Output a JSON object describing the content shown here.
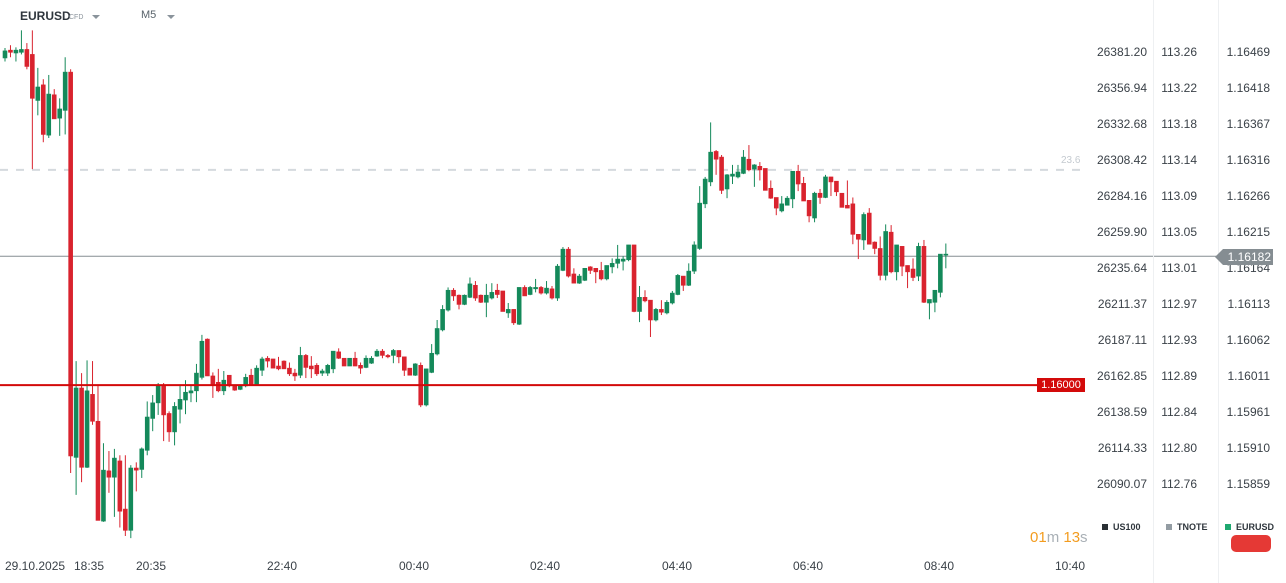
{
  "header": {
    "symbol": "EURUSD",
    "symbol_type": "CFD",
    "timeframe": "M5"
  },
  "colors": {
    "up": "#14895a",
    "down": "#d9232e",
    "level": "#d30a0a",
    "current": "#858d92",
    "fib": "#d5dade"
  },
  "axes": {
    "us100": [
      "26381.20",
      "26356.94",
      "26332.68",
      "26308.42",
      "26284.16",
      "26259.90",
      "26235.64",
      "26211.37",
      "26187.11",
      "26162.85",
      "26138.59",
      "26114.33",
      "26090.07"
    ],
    "tnote": [
      "113.26",
      "113.22",
      "113.18",
      "113.14",
      "113.09",
      "113.05",
      "113.01",
      "112.97",
      "112.93",
      "112.89",
      "112.84",
      "112.80",
      "112.76"
    ],
    "eurusd": [
      "1.16469",
      "1.16418",
      "1.16367",
      "1.16316",
      "1.16266",
      "1.16215",
      "1.16164",
      "1.16113",
      "1.16062",
      "1.16011",
      "1.15961",
      "1.15910",
      "1.15859"
    ]
  },
  "time_axis": {
    "date": "29.10.2025",
    "ticks": [
      "18:35",
      "20:35",
      "22:40",
      "00:40",
      "02:40",
      "04:40",
      "06:40",
      "08:40",
      "10:40"
    ]
  },
  "legend": [
    {
      "label": "US100",
      "color": "#2b3035"
    },
    {
      "label": "TNOTE",
      "color": "#939ca3"
    },
    {
      "label": "EURUSD",
      "color": "#1fa870"
    }
  ],
  "timer": {
    "minutes": "01",
    "m": "m",
    "seconds": "13",
    "s": "s"
  },
  "levels": {
    "horizontal_line": {
      "price": 1.16,
      "label": "1.16000"
    },
    "fib_level": {
      "price": 1.16304,
      "label": "23.6"
    },
    "current_price": {
      "price": 1.16182,
      "label": "1.16182"
    }
  },
  "chart_data": {
    "type": "candlestick",
    "ylim": [
      1.1576,
      1.1656
    ],
    "fields": [
      "open",
      "high",
      "low",
      "close"
    ],
    "candles": [
      [
        1.16462,
        1.16476,
        1.16457,
        1.16472
      ],
      [
        1.16473,
        1.1648,
        1.16463,
        1.1647
      ],
      [
        1.16469,
        1.16477,
        1.16457,
        1.16473
      ],
      [
        1.1647,
        1.16501,
        1.16467,
        1.16474
      ],
      [
        1.16474,
        1.16483,
        1.16446,
        1.1645
      ],
      [
        1.16467,
        1.16501,
        1.16305,
        1.16405
      ],
      [
        1.16402,
        1.16448,
        1.16381,
        1.16421
      ],
      [
        1.16424,
        1.16432,
        1.16343,
        1.16354
      ],
      [
        1.16353,
        1.16438,
        1.16349,
        1.16411
      ],
      [
        1.1641,
        1.16418,
        1.16376,
        1.16376
      ],
      [
        1.16377,
        1.16405,
        1.16352,
        1.1639
      ],
      [
        1.16388,
        1.16463,
        1.16354,
        1.16442
      ],
      [
        1.16442,
        1.16446,
        1.15876,
        1.159
      ],
      [
        1.15898,
        1.16034,
        1.15845,
        1.15996
      ],
      [
        1.15996,
        1.16017,
        1.15863,
        1.15884
      ],
      [
        1.15884,
        1.16035,
        1.15883,
        1.15992
      ],
      [
        1.15987,
        1.16034,
        1.15944,
        1.15949
      ],
      [
        1.15949,
        1.15999,
        1.15809,
        1.15809
      ],
      [
        1.15808,
        1.15918,
        1.15807,
        1.1588
      ],
      [
        1.15879,
        1.15907,
        1.15848,
        1.1587
      ],
      [
        1.1587,
        1.1591,
        1.15814,
        1.15897
      ],
      [
        1.15893,
        1.15901,
        1.15799,
        1.15822
      ],
      [
        1.15825,
        1.15901,
        1.15787,
        1.15795
      ],
      [
        1.15795,
        1.15887,
        1.15784,
        1.15883
      ],
      [
        1.15883,
        1.15891,
        1.1585,
        1.1588
      ],
      [
        1.15881,
        1.15912,
        1.15869,
        1.1591
      ],
      [
        1.15908,
        1.15977,
        1.15901,
        1.15955
      ],
      [
        1.15953,
        1.15986,
        1.15935,
        1.15975
      ],
      [
        1.15975,
        1.16003,
        1.15958,
        1.16
      ],
      [
        1.16,
        1.16003,
        1.15921,
        1.15958
      ],
      [
        1.1596,
        1.15963,
        1.1592,
        1.15934
      ],
      [
        1.15934,
        1.15976,
        1.15915,
        1.1597
      ],
      [
        1.15966,
        1.16001,
        1.15946,
        1.1598
      ],
      [
        1.15979,
        1.16007,
        1.15959,
        1.1599
      ],
      [
        1.15989,
        1.16001,
        1.15976,
        1.15992
      ],
      [
        1.15992,
        1.1603,
        1.15976,
        1.16017
      ],
      [
        1.16011,
        1.16071,
        1.16008,
        1.16062
      ],
      [
        1.16065,
        1.16066,
        1.16013,
        1.16013
      ],
      [
        1.16013,
        1.16018,
        1.15982,
        1.16
      ],
      [
        1.16004,
        1.16023,
        1.1599,
        1.15992
      ],
      [
        1.15992,
        1.1602,
        1.15986,
        1.16007
      ],
      [
        1.16014,
        1.16014,
        1.15997,
        1.15999
      ],
      [
        1.15999,
        1.16,
        1.15992,
        1.15993
      ],
      [
        1.15994,
        1.16001,
        1.15993,
        1.16
      ],
      [
        1.15999,
        1.16016,
        1.15997,
        1.16011
      ],
      [
        1.16014,
        1.16023,
        1.15999,
        1.16
      ],
      [
        1.16001,
        1.16028,
        1.15999,
        1.16024
      ],
      [
        1.16021,
        1.1604,
        1.16013,
        1.16037
      ],
      [
        1.16038,
        1.16041,
        1.16025,
        1.16034
      ],
      [
        1.16037,
        1.16037,
        1.16024,
        1.16024
      ],
      [
        1.16027,
        1.1604,
        1.16021,
        1.16023
      ],
      [
        1.16034,
        1.16035,
        1.16023,
        1.16023
      ],
      [
        1.16024,
        1.16032,
        1.16013,
        1.16016
      ],
      [
        1.16017,
        1.16023,
        1.16006,
        1.16013
      ],
      [
        1.16014,
        1.16054,
        1.1601,
        1.16042
      ],
      [
        1.16042,
        1.16044,
        1.1601,
        1.16025
      ],
      [
        1.16027,
        1.16041,
        1.1601,
        1.16023
      ],
      [
        1.16028,
        1.16031,
        1.16013,
        1.16016
      ],
      [
        1.16017,
        1.16023,
        1.16013,
        1.1602
      ],
      [
        1.16017,
        1.1603,
        1.16013,
        1.16028
      ],
      [
        1.16023,
        1.16048,
        1.16017,
        1.16048
      ],
      [
        1.16047,
        1.16052,
        1.16037,
        1.16038
      ],
      [
        1.16038,
        1.16038,
        1.16027,
        1.16027
      ],
      [
        1.16027,
        1.16038,
        1.16027,
        1.16038
      ],
      [
        1.16038,
        1.16047,
        1.16027,
        1.16027
      ],
      [
        1.16028,
        1.16032,
        1.16016,
        1.16024
      ],
      [
        1.16025,
        1.16042,
        1.16024,
        1.16038
      ],
      [
        1.16031,
        1.16041,
        1.1603,
        1.16038
      ],
      [
        1.16041,
        1.16051,
        1.1604,
        1.16048
      ],
      [
        1.16048,
        1.16051,
        1.16038,
        1.16042
      ],
      [
        1.16042,
        1.16044,
        1.16038,
        1.1604
      ],
      [
        1.16042,
        1.16051,
        1.16031,
        1.16049
      ],
      [
        1.16049,
        1.16049,
        1.16031,
        1.1604
      ],
      [
        1.1604,
        1.1604,
        1.16013,
        1.16021
      ],
      [
        1.16024,
        1.16024,
        1.16014,
        1.16014
      ],
      [
        1.16014,
        1.16031,
        1.16013,
        1.1603
      ],
      [
        1.16028,
        1.16032,
        1.15969,
        1.15972
      ],
      [
        1.15972,
        1.16023,
        1.1597,
        1.16023
      ],
      [
        1.16018,
        1.16058,
        1.16017,
        1.16045
      ],
      [
        1.16044,
        1.16092,
        1.16042,
        1.1608
      ],
      [
        1.16078,
        1.16113,
        1.16076,
        1.16107
      ],
      [
        1.16106,
        1.16138,
        1.16104,
        1.16134
      ],
      [
        1.16134,
        1.16137,
        1.16119,
        1.16126
      ],
      [
        1.16127,
        1.16128,
        1.16107,
        1.16114
      ],
      [
        1.16114,
        1.16128,
        1.16113,
        1.16127
      ],
      [
        1.16124,
        1.16152,
        1.16123,
        1.16143
      ],
      [
        1.16141,
        1.16147,
        1.16119,
        1.16123
      ],
      [
        1.16127,
        1.16128,
        1.16116,
        1.16117
      ],
      [
        1.16117,
        1.16143,
        1.16096,
        1.16127
      ],
      [
        1.16123,
        1.16144,
        1.16121,
        1.16131
      ],
      [
        1.16134,
        1.16143,
        1.16123,
        1.16128
      ],
      [
        1.16133,
        1.16133,
        1.16104,
        1.16104
      ],
      [
        1.16102,
        1.16116,
        1.16095,
        1.16107
      ],
      [
        1.16107,
        1.16107,
        1.16085,
        1.16088
      ],
      [
        1.16086,
        1.16138,
        1.16085,
        1.16138
      ],
      [
        1.16138,
        1.16141,
        1.16126,
        1.16126
      ],
      [
        1.16128,
        1.1614,
        1.16127,
        1.16138
      ],
      [
        1.16136,
        1.1615,
        1.16131,
        1.16138
      ],
      [
        1.16138,
        1.1614,
        1.16128,
        1.1613
      ],
      [
        1.1613,
        1.16147,
        1.16128,
        1.16137
      ],
      [
        1.16136,
        1.1614,
        1.16121,
        1.16123
      ],
      [
        1.16123,
        1.16171,
        1.16119,
        1.16168
      ],
      [
        1.16162,
        1.16195,
        1.16161,
        1.16192
      ],
      [
        1.16192,
        1.16195,
        1.16152,
        1.16154
      ],
      [
        1.16157,
        1.16165,
        1.16144,
        1.16144
      ],
      [
        1.16144,
        1.16157,
        1.16143,
        1.16154
      ],
      [
        1.16148,
        1.16165,
        1.16147,
        1.16165
      ],
      [
        1.16167,
        1.16168,
        1.16157,
        1.16162
      ],
      [
        1.16165,
        1.16165,
        1.16144,
        1.1616
      ],
      [
        1.16162,
        1.16174,
        1.16148,
        1.1615
      ],
      [
        1.1615,
        1.16169,
        1.16148,
        1.16169
      ],
      [
        1.16167,
        1.16179,
        1.16158,
        1.16172
      ],
      [
        1.16172,
        1.16198,
        1.16165,
        1.16178
      ],
      [
        1.16175,
        1.16182,
        1.16162,
        1.16178
      ],
      [
        1.16177,
        1.16198,
        1.16175,
        1.16198
      ],
      [
        1.16198,
        1.16198,
        1.16103,
        1.16104
      ],
      [
        1.16104,
        1.1614,
        1.16089,
        1.16124
      ],
      [
        1.16124,
        1.16134,
        1.16117,
        1.16119
      ],
      [
        1.1612,
        1.1612,
        1.16068,
        1.16092
      ],
      [
        1.16092,
        1.16109,
        1.1609,
        1.16107
      ],
      [
        1.16107,
        1.1612,
        1.16099,
        1.16103
      ],
      [
        1.16102,
        1.1612,
        1.161,
        1.16117
      ],
      [
        1.16116,
        1.16133,
        1.16114,
        1.1613
      ],
      [
        1.16128,
        1.16157,
        1.16127,
        1.16155
      ],
      [
        1.16154,
        1.16154,
        1.16133,
        1.16141
      ],
      [
        1.16141,
        1.16172,
        1.1614,
        1.16161
      ],
      [
        1.16161,
        1.16203,
        1.16157,
        1.16198
      ],
      [
        1.16193,
        1.16281,
        1.16191,
        1.16257
      ],
      [
        1.16256,
        1.16294,
        1.1625,
        1.16291
      ],
      [
        1.16287,
        1.16371,
        1.16281,
        1.16329
      ],
      [
        1.1633,
        1.16332,
        1.16297,
        1.16319
      ],
      [
        1.16322,
        1.16325,
        1.1627,
        1.16275
      ],
      [
        1.16277,
        1.16298,
        1.16264,
        1.16297
      ],
      [
        1.16295,
        1.16311,
        1.16284,
        1.16298
      ],
      [
        1.16294,
        1.16311,
        1.16292,
        1.16301
      ],
      [
        1.16299,
        1.16332,
        1.16298,
        1.16322
      ],
      [
        1.16319,
        1.16339,
        1.16302,
        1.16304
      ],
      [
        1.16305,
        1.16312,
        1.1628,
        1.16311
      ],
      [
        1.16309,
        1.16315,
        1.16289,
        1.16304
      ],
      [
        1.16306,
        1.16306,
        1.16275,
        1.16275
      ],
      [
        1.16278,
        1.16289,
        1.16263,
        1.16264
      ],
      [
        1.16265,
        1.16265,
        1.1624,
        1.1625
      ],
      [
        1.16246,
        1.16267,
        1.16244,
        1.16256
      ],
      [
        1.16254,
        1.16267,
        1.16254,
        1.16264
      ],
      [
        1.16263,
        1.16302,
        1.1625,
        1.16302
      ],
      [
        1.16302,
        1.16311,
        1.16274,
        1.16284
      ],
      [
        1.16285,
        1.16294,
        1.1626,
        1.1626
      ],
      [
        1.16261,
        1.16261,
        1.1623,
        1.16239
      ],
      [
        1.16236,
        1.16273,
        1.1623,
        1.16271
      ],
      [
        1.16271,
        1.16277,
        1.16256,
        1.16265
      ],
      [
        1.16265,
        1.16297,
        1.16264,
        1.16294
      ],
      [
        1.16294,
        1.16294,
        1.16267,
        1.16287
      ],
      [
        1.16288,
        1.16288,
        1.16267,
        1.16273
      ],
      [
        1.16271,
        1.16271,
        1.16251,
        1.16251
      ],
      [
        1.16254,
        1.16289,
        1.1625,
        1.1625
      ],
      [
        1.16256,
        1.16265,
        1.16199,
        1.16213
      ],
      [
        1.16213,
        1.16213,
        1.16178,
        1.16206
      ],
      [
        1.16205,
        1.16244,
        1.16191,
        1.16241
      ],
      [
        1.16243,
        1.1625,
        1.16199,
        1.16199
      ],
      [
        1.16202,
        1.16203,
        1.16185,
        1.16193
      ],
      [
        1.16193,
        1.1621,
        1.16148,
        1.16155
      ],
      [
        1.16155,
        1.16227,
        1.16148,
        1.16217
      ],
      [
        1.16216,
        1.16226,
        1.16158,
        1.1616
      ],
      [
        1.1616,
        1.16198,
        1.16148,
        1.16198
      ],
      [
        1.16196,
        1.16196,
        1.16154,
        1.16168
      ],
      [
        1.16169,
        1.16169,
        1.16137,
        1.1616
      ],
      [
        1.16164,
        1.16179,
        1.16147,
        1.16152
      ],
      [
        1.16154,
        1.16201,
        1.16147,
        1.16196
      ],
      [
        1.16196,
        1.16205,
        1.16116,
        1.16117
      ],
      [
        1.16116,
        1.16121,
        1.16093,
        1.16121
      ],
      [
        1.16117,
        1.16134,
        1.16103,
        1.16134
      ],
      [
        1.16131,
        1.16185,
        1.16124,
        1.16185
      ],
      [
        1.16184,
        1.162,
        1.16165,
        1.16185
      ]
    ]
  }
}
